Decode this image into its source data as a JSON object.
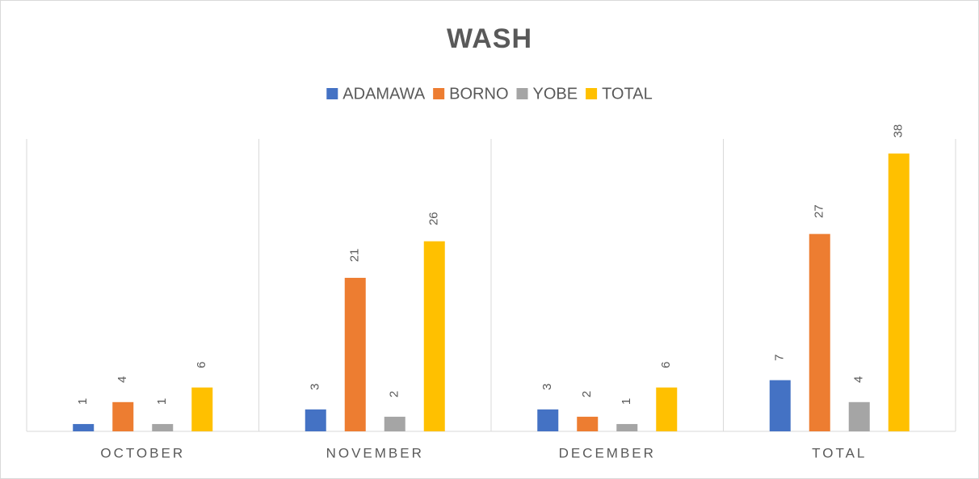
{
  "chart_data": {
    "type": "bar",
    "title": "WASH",
    "categories": [
      "OCTOBER",
      "NOVEMBER",
      "DECEMBER",
      "TOTAL"
    ],
    "series": [
      {
        "name": "ADAMAWA",
        "color": "#4472c4",
        "values": [
          1,
          3,
          3,
          7
        ]
      },
      {
        "name": "BORNO",
        "color": "#ed7d31",
        "values": [
          4,
          21,
          2,
          27
        ]
      },
      {
        "name": "YOBE",
        "color": "#a5a5a5",
        "values": [
          1,
          2,
          1,
          4
        ]
      },
      {
        "name": "TOTAL",
        "color": "#ffc000",
        "values": [
          6,
          26,
          6,
          38
        ]
      }
    ],
    "ylim": [
      0,
      40
    ],
    "legend": "top"
  }
}
